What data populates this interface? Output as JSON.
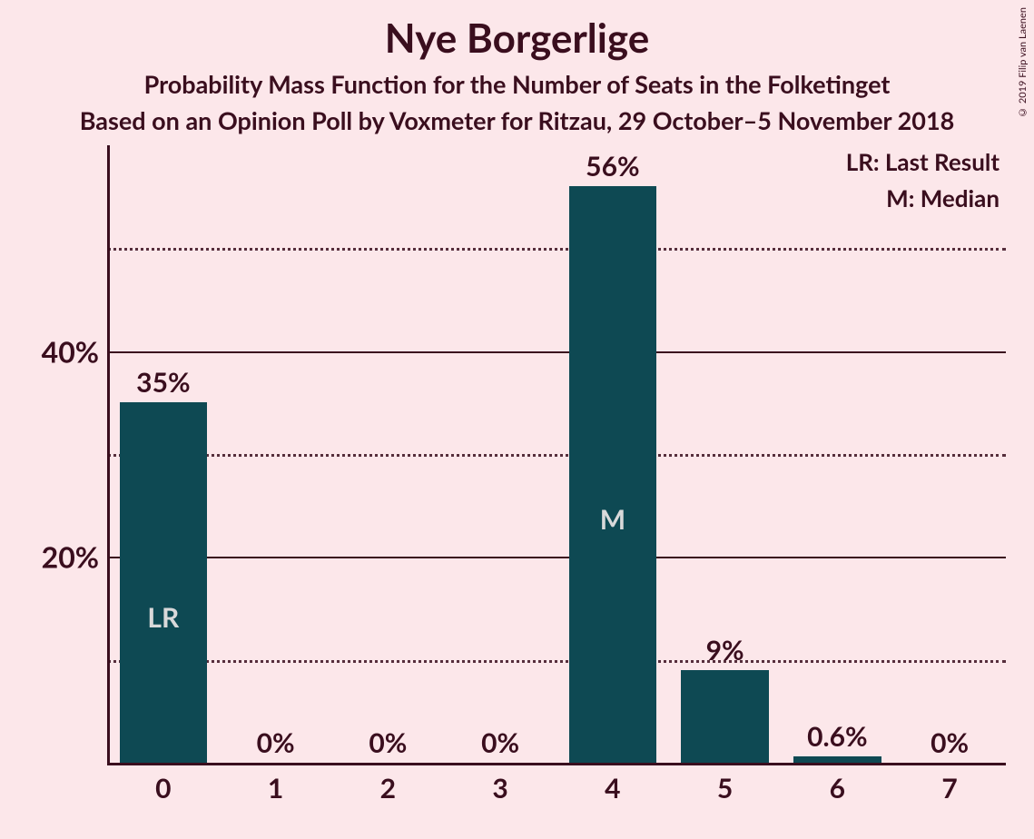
{
  "title": "Nye Borgerlige",
  "subtitle1": "Probability Mass Function for the Number of Seats in the Folketinget",
  "subtitle2": "Based on an Opinion Poll by Voxmeter for Ritzau, 29 October–5 November 2018",
  "legend": {
    "lr": "LR: Last Result",
    "m": "M: Median"
  },
  "copyright": "© 2019 Filip van Laenen",
  "chart": {
    "type": "bar",
    "background_color": "#fce7ea",
    "bar_color": "#0e4953",
    "text_color": "#3a0e1e",
    "categories": [
      "0",
      "1",
      "2",
      "3",
      "4",
      "5",
      "6",
      "7"
    ],
    "values": [
      35,
      0,
      0,
      0,
      56,
      9,
      0.6,
      0
    ],
    "value_labels": [
      "35%",
      "0%",
      "0%",
      "0%",
      "56%",
      "9%",
      "0.6%",
      "0%"
    ],
    "in_bar_labels": [
      "LR",
      "",
      "",
      "",
      "M",
      "",
      "",
      ""
    ],
    "ylim": [
      0,
      60
    ],
    "ytick_major": [
      20,
      40
    ],
    "ytick_major_labels": [
      "20%",
      "40%"
    ],
    "ytick_minor": [
      10,
      30,
      50
    ],
    "bar_width": 0.78,
    "label_fontsize": 30,
    "title_fontsize": 44,
    "subtitle_fontsize": 27,
    "in_bar_text_color": "#d9d9da"
  }
}
